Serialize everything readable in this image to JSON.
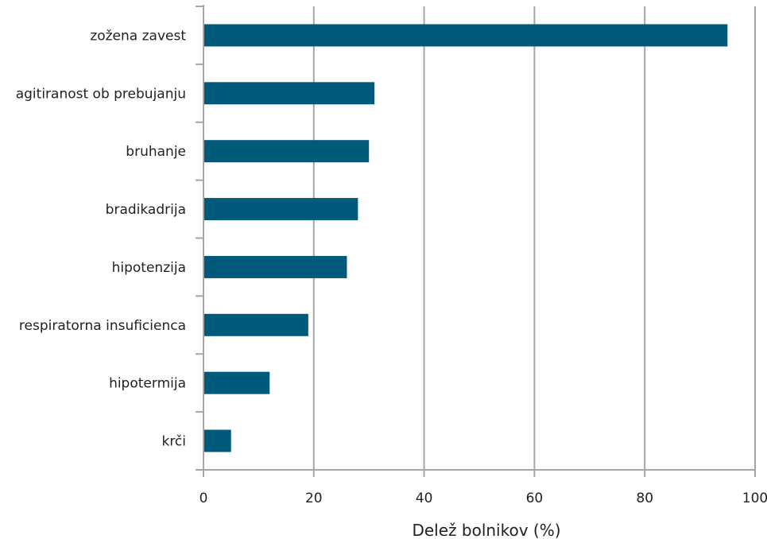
{
  "chart_data": {
    "type": "bar",
    "orientation": "horizontal",
    "title": "",
    "xlabel": "Delež bolnikov (%)",
    "ylabel": "",
    "categories": [
      "zožena zavest",
      "agitiranost ob prebujanju",
      "bruhanje",
      "bradikadrija",
      "hipotenzija",
      "respiratorna insuficienca",
      "hipotermija",
      "krči"
    ],
    "values": [
      95,
      31,
      30,
      28,
      26,
      19,
      12,
      5
    ],
    "xlim": [
      0,
      100
    ],
    "xticks": [
      0,
      20,
      40,
      60,
      80,
      100
    ],
    "grid": "vertical",
    "legend": "none",
    "colors": {
      "bar": "#005a7a",
      "grid": "#a6a6a6",
      "axis": "#a6a6a6",
      "text": "#222222"
    }
  }
}
